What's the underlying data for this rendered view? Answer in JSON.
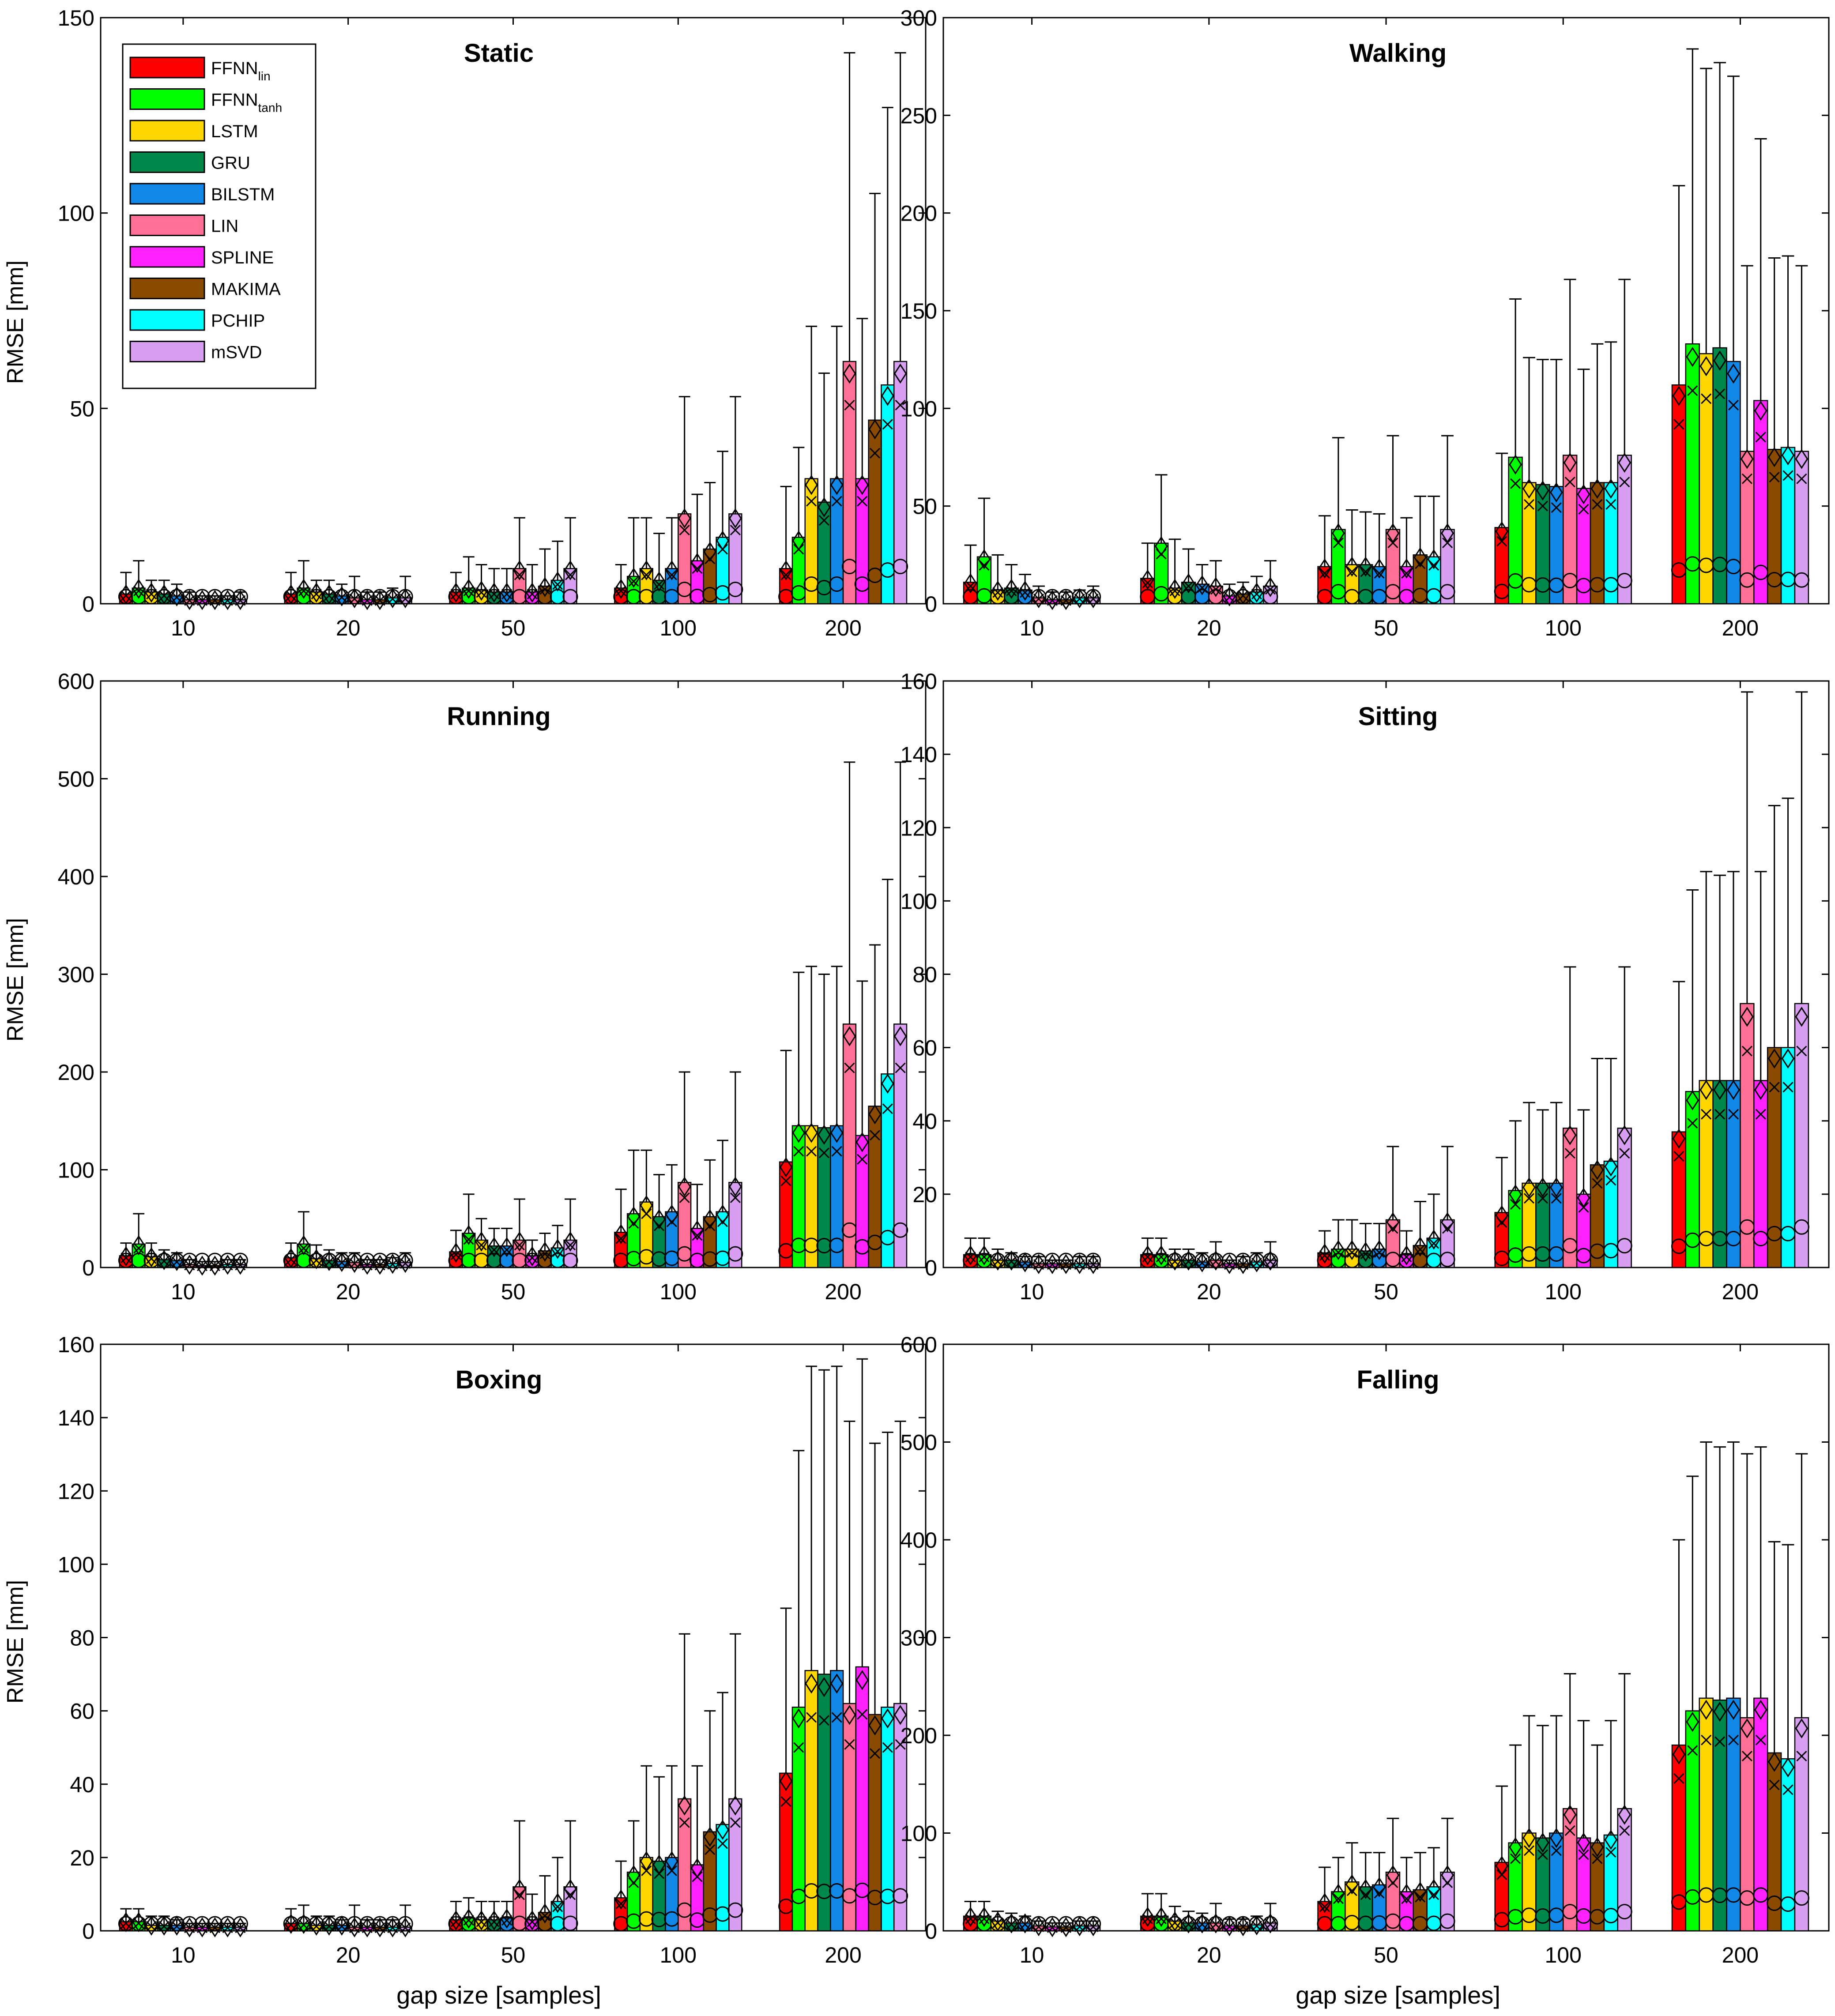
{
  "figure": {
    "ylabel": "RMSE [mm]",
    "xlabel": "gap size [samples]"
  },
  "legend": {
    "items": [
      {
        "label": "FFNN",
        "sub": "lin",
        "color": "#ff0000"
      },
      {
        "label": "FFNN",
        "sub": "tanh",
        "color": "#00ff00"
      },
      {
        "label": "LSTM",
        "sub": "",
        "color": "#ffd700"
      },
      {
        "label": "GRU",
        "sub": "",
        "color": "#00884a"
      },
      {
        "label": "BILSTM",
        "sub": "",
        "color": "#1188e8"
      },
      {
        "label": "LIN",
        "sub": "",
        "color": "#ff6f96"
      },
      {
        "label": "SPLINE",
        "sub": "",
        "color": "#ff22ff"
      },
      {
        "label": "MAKIMA",
        "sub": "",
        "color": "#8a4a00"
      },
      {
        "label": "PCHIP",
        "sub": "",
        "color": "#00ffff"
      },
      {
        "label": "mSVD",
        "sub": "",
        "color": "#d89ef2"
      }
    ]
  },
  "chart_data": [
    {
      "type": "bar",
      "title": "Static",
      "categories": [
        "10",
        "20",
        "50",
        "100",
        "200"
      ],
      "ylim": [
        0,
        150
      ],
      "yticks": [
        0,
        50,
        100,
        150
      ],
      "ytick_labels": [
        "0",
        "50",
        "100",
        "150"
      ],
      "xlabel": "",
      "ylabel": "RMSE [mm]",
      "values": [
        [
          2.5,
          4,
          3,
          2.5,
          2,
          1,
          1,
          1,
          1,
          1
        ],
        [
          2.5,
          4,
          3,
          2.5,
          2,
          1.5,
          1,
          1,
          1.5,
          1.5
        ],
        [
          3,
          4,
          3.5,
          3,
          3,
          9,
          3,
          4.5,
          6,
          9
        ],
        [
          4,
          7,
          9,
          6,
          9,
          23,
          11,
          14,
          17,
          23
        ],
        [
          9,
          17,
          32,
          26,
          32,
          62,
          32,
          47,
          56,
          62
        ]
      ],
      "errors": [
        [
          8,
          11,
          6,
          6,
          5,
          3,
          2,
          2,
          2,
          3
        ],
        [
          8,
          11,
          6,
          6,
          5,
          7,
          3,
          3,
          4,
          7
        ],
        [
          8,
          12,
          10,
          9,
          9,
          22,
          10,
          14,
          16,
          22
        ],
        [
          10,
          22,
          22,
          18,
          22,
          53,
          28,
          31,
          39,
          53
        ],
        [
          30,
          40,
          71,
          59,
          71,
          141,
          73,
          105,
          127,
          141
        ]
      ]
    },
    {
      "type": "bar",
      "title": "Walking",
      "categories": [
        "10",
        "20",
        "50",
        "100",
        "200"
      ],
      "ylim": [
        0,
        300
      ],
      "yticks": [
        0,
        50,
        100,
        150,
        200,
        250,
        300
      ],
      "ytick_labels": [
        "0",
        "50",
        "100",
        "150",
        "200",
        "250",
        "300"
      ],
      "xlabel": "",
      "ylabel": "",
      "values": [
        [
          11,
          24,
          7,
          8,
          7,
          3,
          2,
          2,
          3,
          3
        ],
        [
          13,
          31,
          8,
          11,
          10,
          9,
          4,
          5,
          6,
          9
        ],
        [
          19,
          38,
          20,
          20,
          19,
          38,
          19,
          25,
          24,
          38
        ],
        [
          39,
          75,
          62,
          61,
          60,
          76,
          59,
          62,
          62,
          76
        ],
        [
          112,
          133,
          128,
          131,
          124,
          78,
          104,
          79,
          80,
          78
        ]
      ],
      "errors": [
        [
          30,
          54,
          25,
          20,
          15,
          9,
          6,
          6,
          7,
          9
        ],
        [
          31,
          66,
          33,
          28,
          20,
          22,
          10,
          11,
          14,
          22
        ],
        [
          45,
          85,
          48,
          47,
          46,
          86,
          44,
          55,
          55,
          86
        ],
        [
          77,
          156,
          126,
          125,
          125,
          166,
          120,
          133,
          134,
          166
        ],
        [
          214,
          284,
          274,
          277,
          270,
          173,
          238,
          177,
          178,
          173
        ]
      ]
    },
    {
      "type": "bar",
      "title": "Running",
      "categories": [
        "10",
        "20",
        "50",
        "100",
        "200"
      ],
      "ylim": [
        0,
        600
      ],
      "yticks": [
        0,
        100,
        200,
        300,
        400,
        500,
        600
      ],
      "ytick_labels": [
        "0",
        "100",
        "200",
        "300",
        "400",
        "500",
        "600"
      ],
      "xlabel": "",
      "ylabel": "RMSE [mm]",
      "values": [
        [
          12,
          24,
          11,
          8,
          7,
          3,
          2,
          2,
          3,
          3
        ],
        [
          10,
          24,
          9,
          7,
          6,
          5,
          3,
          3,
          4,
          5
        ],
        [
          16,
          35,
          28,
          22,
          22,
          28,
          12,
          17,
          20,
          28
        ],
        [
          36,
          55,
          67,
          52,
          57,
          87,
          40,
          52,
          57,
          87
        ],
        [
          108,
          145,
          145,
          143,
          145,
          249,
          135,
          165,
          198,
          249
        ]
      ],
      "errors": [
        [
          25,
          55,
          25,
          18,
          15,
          8,
          6,
          6,
          8,
          8
        ],
        [
          25,
          57,
          23,
          18,
          15,
          15,
          8,
          8,
          10,
          15
        ],
        [
          38,
          75,
          50,
          40,
          40,
          70,
          28,
          35,
          43,
          70
        ],
        [
          80,
          120,
          120,
          95,
          105,
          200,
          85,
          110,
          130,
          200
        ],
        [
          222,
          302,
          308,
          300,
          308,
          517,
          293,
          330,
          397,
          517
        ]
      ]
    },
    {
      "type": "bar",
      "title": "Sitting",
      "categories": [
        "10",
        "20",
        "50",
        "100",
        "200"
      ],
      "ylim": [
        0,
        160
      ],
      "yticks": [
        0,
        20,
        40,
        60,
        80,
        100,
        120,
        140,
        160
      ],
      "ytick_labels": [
        "0",
        "20",
        "40",
        "60",
        "80",
        "100",
        "120",
        "140",
        "160"
      ],
      "xlabel": "",
      "ylabel": "",
      "values": [
        [
          3.5,
          3.5,
          2,
          2,
          1.5,
          1,
          1,
          1,
          1,
          1
        ],
        [
          3.5,
          3.5,
          2,
          2,
          1.5,
          2,
          1,
          1,
          1.5,
          2
        ],
        [
          4,
          5,
          5,
          4.5,
          5,
          13,
          3.5,
          6,
          8,
          13
        ],
        [
          15,
          21,
          23,
          23,
          23,
          38,
          20,
          28,
          29,
          38
        ],
        [
          37,
          48,
          51,
          51,
          51,
          72,
          51,
          60,
          60,
          72
        ]
      ],
      "errors": [
        [
          8,
          8,
          5,
          4,
          3,
          3,
          2,
          2,
          3,
          3
        ],
        [
          8,
          8,
          5,
          5,
          4,
          7,
          2,
          3,
          4,
          7
        ],
        [
          10,
          13,
          13,
          12,
          12,
          33,
          10,
          18,
          20,
          33
        ],
        [
          30,
          40,
          45,
          43,
          45,
          82,
          43,
          57,
          57,
          82
        ],
        [
          78,
          103,
          108,
          107,
          108,
          157,
          108,
          126,
          128,
          157
        ]
      ]
    },
    {
      "type": "bar",
      "title": "Boxing",
      "categories": [
        "10",
        "20",
        "50",
        "100",
        "200"
      ],
      "ylim": [
        0,
        160
      ],
      "yticks": [
        0,
        20,
        40,
        60,
        80,
        100,
        120,
        140,
        160
      ],
      "ytick_labels": [
        "0",
        "20",
        "40",
        "60",
        "80",
        "100",
        "120",
        "140",
        "160"
      ],
      "xlabel": "gap size [samples]",
      "ylabel": "RMSE [mm]",
      "values": [
        [
          2.5,
          2.5,
          1.5,
          1.5,
          1.5,
          1,
          1,
          1,
          1,
          1
        ],
        [
          2,
          2,
          1.5,
          1.5,
          1.5,
          1,
          1,
          1,
          1,
          1
        ],
        [
          3,
          3.5,
          3,
          3,
          3.5,
          12,
          3,
          5,
          8,
          12
        ],
        [
          9,
          16,
          20,
          19,
          20,
          36,
          18,
          27,
          29,
          36
        ],
        [
          43,
          61,
          71,
          70,
          71,
          62,
          72,
          59,
          61,
          62
        ]
      ],
      "errors": [
        [
          6,
          6,
          4,
          4,
          3,
          2,
          2,
          2,
          2,
          2
        ],
        [
          6,
          7,
          4,
          4,
          3,
          7,
          3,
          3,
          3,
          7
        ],
        [
          8,
          9,
          8,
          8,
          8,
          30,
          10,
          15,
          20,
          30
        ],
        [
          19,
          30,
          45,
          42,
          45,
          81,
          45,
          60,
          65,
          81
        ],
        [
          88,
          131,
          154,
          153,
          154,
          139,
          156,
          133,
          136,
          139
        ]
      ]
    },
    {
      "type": "bar",
      "title": "Falling",
      "categories": [
        "10",
        "20",
        "50",
        "100",
        "200"
      ],
      "ylim": [
        0,
        600
      ],
      "yticks": [
        0,
        100,
        200,
        300,
        400,
        500,
        600
      ],
      "ytick_labels": [
        "0",
        "100",
        "200",
        "300",
        "400",
        "500",
        "600"
      ],
      "xlabel": "gap size [samples]",
      "ylabel": "",
      "values": [
        [
          15,
          15,
          10,
          8,
          8,
          5,
          4,
          4,
          5,
          5
        ],
        [
          15,
          15,
          10,
          8,
          8,
          8,
          5,
          5,
          6,
          8
        ],
        [
          30,
          40,
          50,
          45,
          47,
          60,
          40,
          42,
          45,
          60
        ],
        [
          70,
          90,
          100,
          95,
          100,
          125,
          95,
          90,
          98,
          125
        ],
        [
          190,
          225,
          238,
          236,
          238,
          218,
          238,
          182,
          176,
          218
        ]
      ],
      "errors": [
        [
          30,
          30,
          20,
          18,
          15,
          10,
          8,
          8,
          10,
          10
        ],
        [
          38,
          38,
          25,
          20,
          18,
          28,
          12,
          12,
          15,
          28
        ],
        [
          65,
          75,
          90,
          80,
          80,
          115,
          75,
          80,
          85,
          115
        ],
        [
          148,
          190,
          220,
          210,
          220,
          263,
          215,
          190,
          215,
          263
        ],
        [
          400,
          465,
          500,
          495,
          500,
          488,
          495,
          398,
          395,
          488
        ]
      ]
    }
  ]
}
